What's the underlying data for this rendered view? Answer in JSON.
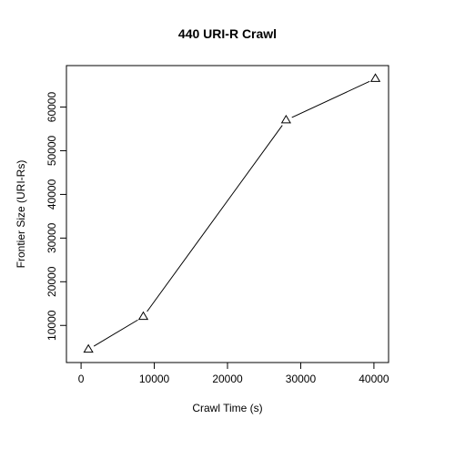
{
  "chart_data": {
    "type": "line",
    "title": "440 URI-R Crawl",
    "xlabel": "Crawl Time (s)",
    "ylabel": "Frontier Size (URI-Rs)",
    "x": [
      1000,
      8500,
      28000,
      40200
    ],
    "y": [
      4500,
      12000,
      57000,
      66500
    ],
    "marker": "triangle",
    "xlim": [
      -2000,
      42000
    ],
    "ylim": [
      1500,
      69500
    ],
    "xticks": [
      0,
      10000,
      20000,
      30000,
      40000
    ],
    "xtick_labels": [
      "0",
      "10000",
      "20000",
      "30000",
      "40000"
    ],
    "yticks": [
      10000,
      20000,
      30000,
      40000,
      50000,
      60000
    ],
    "ytick_labels": [
      "10000",
      "20000",
      "30000",
      "40000",
      "50000",
      "60000"
    ],
    "grid": false,
    "line_color": "#000000"
  }
}
